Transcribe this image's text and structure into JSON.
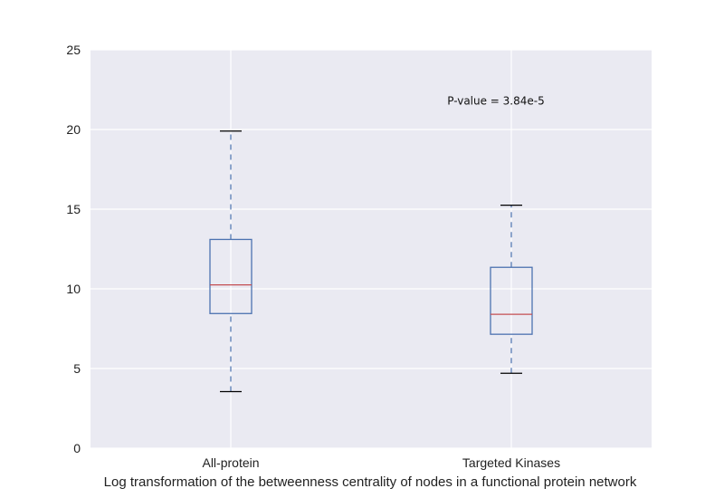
{
  "chart_data": {
    "type": "box",
    "xlabel": "Log transformation of the betweenness centrality of nodes in a functional protein network",
    "ylabel": "",
    "ylim": [
      0,
      25
    ],
    "yticks": [
      "0",
      "5",
      "10",
      "15",
      "20",
      "25"
    ],
    "grid": true,
    "categories": [
      "All-protein",
      "Targeted Kinases"
    ],
    "boxes": [
      {
        "name": "All-protein",
        "whisker_low": 3.55,
        "q1": 8.45,
        "median": 10.25,
        "q3": 13.1,
        "whisker_high": 19.9
      },
      {
        "name": "Targeted Kinases",
        "whisker_low": 4.7,
        "q1": 7.15,
        "median": 8.4,
        "q3": 11.35,
        "whisker_high": 15.25
      }
    ],
    "annotations": [
      {
        "text": "P-value = 3.84e-5",
        "x": "Targeted Kinases",
        "y": 21.8
      }
    ],
    "colors": {
      "plot_background": "#eaeaf2",
      "grid": "#ffffff",
      "box": "#4c72b0",
      "median": "#c44e52",
      "cap": "#000000"
    }
  }
}
